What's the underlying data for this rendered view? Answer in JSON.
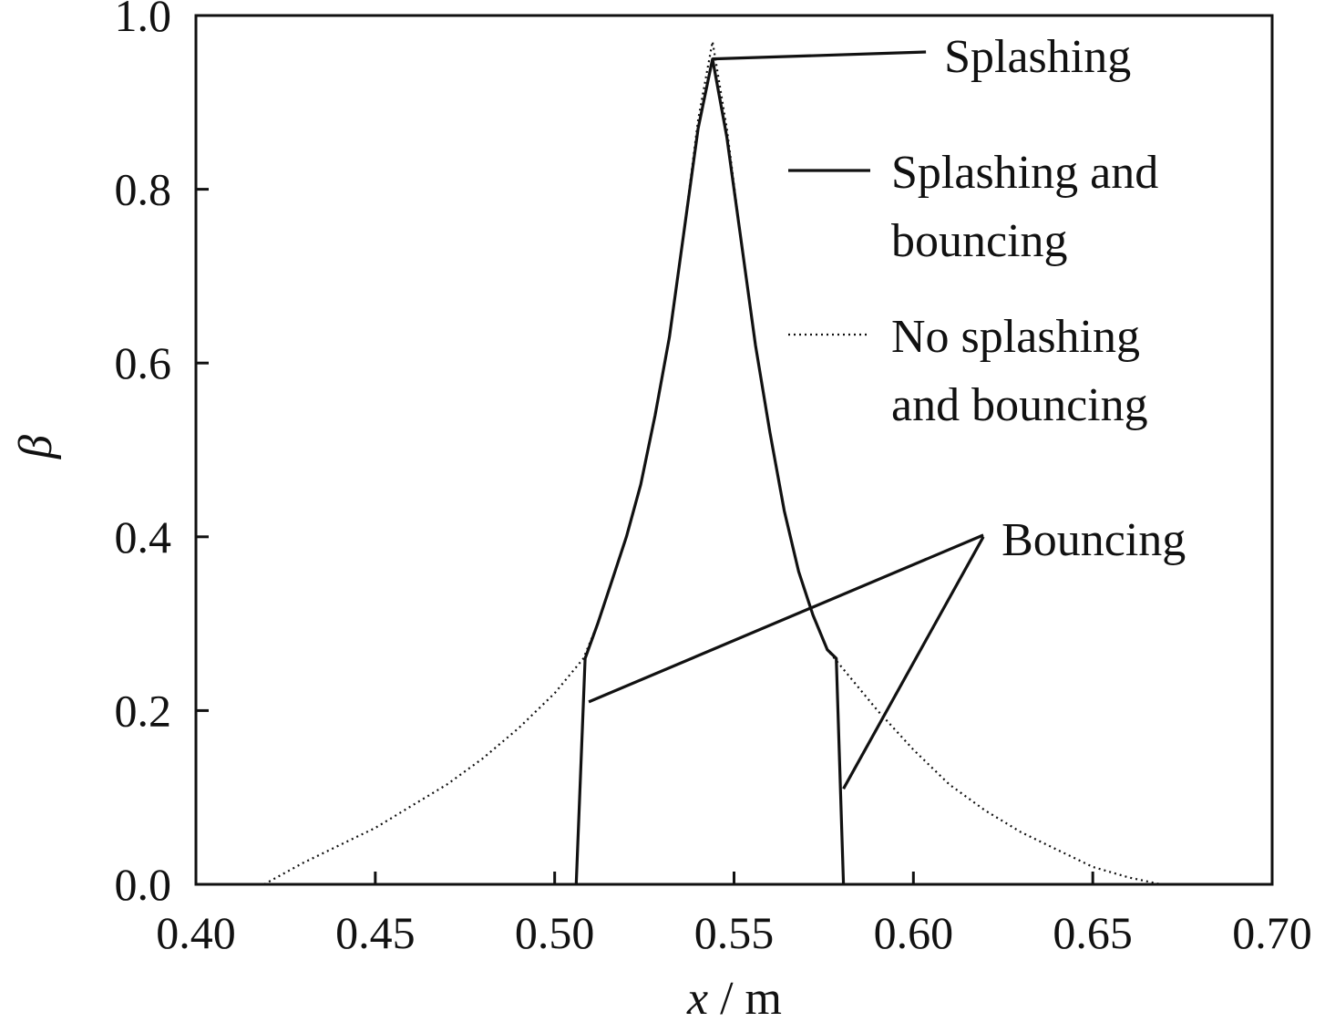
{
  "chart_data": {
    "type": "line",
    "xlabel_var": "x",
    "xlabel_unit": " / m",
    "ylabel": "β",
    "xlim": [
      0.4,
      0.7
    ],
    "ylim": [
      0.0,
      1.0
    ],
    "xticks": [
      "0.40",
      "0.45",
      "0.50",
      "0.55",
      "0.60",
      "0.65",
      "0.70"
    ],
    "yticks": [
      "0.0",
      "0.2",
      "0.4",
      "0.6",
      "0.8",
      "1.0"
    ],
    "legend": {
      "placement": "top-right",
      "entries": [
        {
          "lines": [
            "Splashing and",
            "bouncing"
          ],
          "style": "solid"
        },
        {
          "lines": [
            "No splashing",
            "and bouncing"
          ],
          "style": "dotted"
        }
      ]
    },
    "series": [
      {
        "style": "solid",
        "x": [
          0.506,
          0.5085,
          0.512,
          0.516,
          0.52,
          0.524,
          0.528,
          0.532,
          0.536,
          0.54,
          0.544,
          0.548,
          0.552,
          0.556,
          0.56,
          0.564,
          0.568,
          0.572,
          0.576,
          0.5785,
          0.5805
        ],
        "y": [
          0.0,
          0.26,
          0.3,
          0.35,
          0.4,
          0.46,
          0.54,
          0.63,
          0.75,
          0.87,
          0.95,
          0.86,
          0.74,
          0.62,
          0.52,
          0.43,
          0.36,
          0.31,
          0.27,
          0.26,
          0.0
        ]
      },
      {
        "style": "dotted",
        "x": [
          0.419,
          0.43,
          0.44,
          0.45,
          0.46,
          0.47,
          0.48,
          0.49,
          0.5,
          0.508,
          0.512,
          0.516,
          0.52,
          0.524,
          0.528,
          0.532,
          0.536,
          0.54,
          0.544,
          0.548,
          0.552,
          0.556,
          0.56,
          0.564,
          0.568,
          0.572,
          0.576,
          0.579,
          0.59,
          0.6,
          0.61,
          0.62,
          0.63,
          0.64,
          0.65,
          0.66,
          0.669
        ],
        "y": [
          0.0,
          0.025,
          0.045,
          0.065,
          0.09,
          0.115,
          0.145,
          0.18,
          0.22,
          0.26,
          0.3,
          0.35,
          0.4,
          0.46,
          0.54,
          0.63,
          0.75,
          0.88,
          0.97,
          0.87,
          0.74,
          0.62,
          0.52,
          0.43,
          0.36,
          0.31,
          0.27,
          0.255,
          0.2,
          0.155,
          0.115,
          0.085,
          0.06,
          0.04,
          0.02,
          0.008,
          0.0
        ]
      }
    ],
    "annotations": [
      {
        "text": "Splashing",
        "target": [
          0.544,
          0.95
        ],
        "line_end": [
          0.6035,
          0.958
        ]
      },
      {
        "text": "Bouncing",
        "target": [
          0.5095,
          0.21
        ],
        "line_end": [
          0.6195,
          0.402
        ]
      },
      {
        "text": "Bouncing",
        "target": [
          0.5805,
          0.11
        ],
        "line_end": [
          0.6195,
          0.4
        ]
      }
    ]
  }
}
